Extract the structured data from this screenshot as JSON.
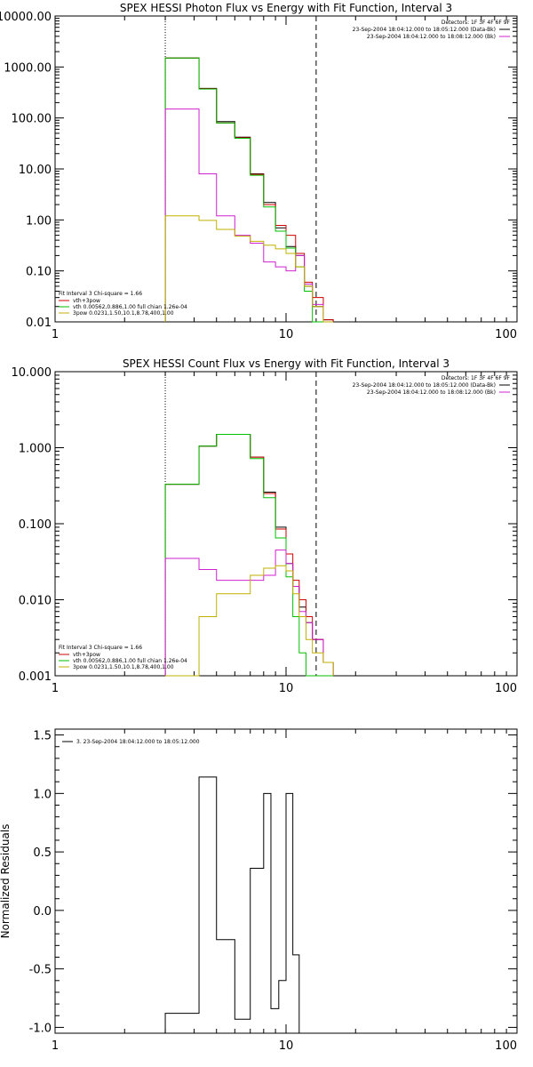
{
  "chart_data": [
    {
      "type": "line",
      "title": "SPEX HESSI Photon Flux vs Energy with Fit Function, Interval 3",
      "xscale": "log",
      "yscale": "log",
      "xlim": [
        1,
        100
      ],
      "ylim": [
        0.01,
        10000
      ],
      "xticks": [
        {
          "v": 1,
          "label": "1"
        },
        {
          "v": 10,
          "label": "10"
        },
        {
          "v": 100,
          "label": "100"
        }
      ],
      "yticks": [
        {
          "v": 0.01,
          "label": "0.01"
        },
        {
          "v": 0.1,
          "label": "0.10"
        },
        {
          "v": 1,
          "label": "1.00"
        },
        {
          "v": 10,
          "label": "10.00"
        },
        {
          "v": 100,
          "label": "100.00"
        },
        {
          "v": 1000,
          "label": "1000.00"
        },
        {
          "v": 10000,
          "label": "10000.00"
        }
      ],
      "vlines": [
        {
          "x": 3.0,
          "style": "dotted"
        },
        {
          "x": 13.5,
          "style": "dashed"
        }
      ],
      "info_top_right": [
        "Detectors: 1F 3F 4F 6F 9F",
        "23-Sep-2004 18:04:12.000 to 18:05:12.000 (Data-Bk)",
        "23-Sep-2004 18:04:12.000 to 18:08:12.000 (Bk)"
      ],
      "info_swatch_colors": [
        "#000000",
        "#d020d0"
      ],
      "fit_legend": {
        "header": "Fit Interval  3    Chi-square = 1.66",
        "entries": [
          {
            "label": "vth+3pow",
            "color": "#d00000"
          },
          {
            "label": "vth 0.00562,0.886,1.00  full chian 1.26e-04",
            "color": "#00c000"
          },
          {
            "label": "3pow 0.0231,1.50,10.1,8.78,400,1.00",
            "color": "#c0b000"
          }
        ]
      },
      "bin_edges": [
        3.0,
        3.5,
        4.2,
        5.0,
        6.0,
        7.0,
        8.0,
        9.0,
        10.0,
        11.0,
        12.0,
        13.0,
        14.5,
        16.0
      ],
      "series": [
        {
          "color": "#000000",
          "values": [
            1500,
            1500,
            380,
            85,
            42,
            8,
            2.2,
            0.7,
            0.3,
            0.2,
            0.05,
            0.02,
            0.011
          ]
        },
        {
          "color": "#d00000",
          "values": [
            1500,
            1500,
            375,
            80,
            41,
            7.8,
            2.0,
            0.78,
            0.5,
            0.22,
            0.06,
            0.03,
            0.011
          ]
        },
        {
          "color": "#00c000",
          "values": [
            1500,
            1500,
            370,
            80,
            40,
            7.5,
            1.8,
            0.6,
            0.28,
            0.12,
            0.04,
            0.008,
            0.008
          ]
        },
        {
          "color": "#d020d0",
          "values": [
            150,
            150,
            8,
            1.2,
            0.5,
            0.35,
            0.15,
            0.12,
            0.1,
            0.2,
            0.055,
            0.022,
            0.01
          ]
        },
        {
          "color": "#c0b000",
          "values": [
            1.2,
            1.2,
            0.98,
            0.65,
            0.48,
            0.38,
            0.32,
            0.27,
            0.22,
            0.12,
            0.05,
            0.02,
            0.01
          ]
        }
      ]
    },
    {
      "type": "line",
      "title": "SPEX HESSI Count Flux vs Energy with Fit Function, Interval 3",
      "xscale": "log",
      "yscale": "log",
      "xlim": [
        1,
        100
      ],
      "ylim": [
        0.001,
        10
      ],
      "xticks": [
        {
          "v": 1,
          "label": "1"
        },
        {
          "v": 10,
          "label": "10"
        },
        {
          "v": 100,
          "label": "100"
        }
      ],
      "yticks": [
        {
          "v": 0.001,
          "label": "0.001"
        },
        {
          "v": 0.01,
          "label": "0.010"
        },
        {
          "v": 0.1,
          "label": "0.100"
        },
        {
          "v": 1,
          "label": "1.000"
        },
        {
          "v": 10,
          "label": "10.000"
        }
      ],
      "vlines": [
        {
          "x": 3.0,
          "style": "dotted"
        },
        {
          "x": 13.5,
          "style": "dashed"
        }
      ],
      "info_top_right": [
        "Detectors: 1F 3F 4F 6F 9F",
        "23-Sep-2004 18:04:12.000 to 18:05:12.000 (Data-Bk)",
        "23-Sep-2004 18:04:12.000 to 18:08:12.000 (Bk)"
      ],
      "info_swatch_colors": [
        "#000000",
        "#d020d0"
      ],
      "fit_legend": {
        "header": "Fit Interval  3    Chi-square = 1.66",
        "entries": [
          {
            "label": "vth+3pow",
            "color": "#d00000"
          },
          {
            "label": "vth 0.00562,0.886,1.00  full chian 1.26e-04",
            "color": "#00c000"
          },
          {
            "label": "3pow 0.0231,1.50,10.1,8.78,400,1.00",
            "color": "#c0b000"
          }
        ]
      },
      "bin_edges": [
        3.0,
        4.2,
        5.0,
        7.0,
        8.0,
        9.0,
        10.0,
        10.7,
        11.4,
        12.2,
        13.0,
        14.5,
        16.0
      ],
      "series": [
        {
          "color": "#000000",
          "values": [
            0.33,
            1.05,
            1.5,
            0.75,
            0.26,
            0.09,
            0.03,
            0.015,
            0.008,
            0.005,
            0.003,
            0.0015
          ]
        },
        {
          "color": "#d00000",
          "values": [
            0.33,
            1.05,
            1.5,
            0.75,
            0.25,
            0.085,
            0.04,
            0.018,
            0.01,
            0.006,
            0.003,
            0.0015
          ]
        },
        {
          "color": "#00c000",
          "values": [
            0.33,
            1.05,
            1.5,
            0.72,
            0.22,
            0.065,
            0.02,
            0.006,
            0.002,
            0.001,
            0.001,
            0.001
          ]
        },
        {
          "color": "#d020d0",
          "values": [
            0.035,
            0.025,
            0.018,
            0.018,
            0.021,
            0.045,
            0.03,
            0.015,
            0.007,
            0.005,
            0.003,
            0.0015
          ]
        },
        {
          "color": "#c0b000",
          "values": [
            0.001,
            0.006,
            0.012,
            0.021,
            0.026,
            0.028,
            0.024,
            0.012,
            0.006,
            0.003,
            0.002,
            0.0015
          ]
        }
      ]
    },
    {
      "type": "line",
      "title": "",
      "ylabel": "Normalized Residuals",
      "xscale": "log",
      "yscale": "linear",
      "xlim": [
        1,
        100
      ],
      "ylim": [
        -1.05,
        1.55
      ],
      "xticks": [
        {
          "v": 1,
          "label": "1"
        },
        {
          "v": 10,
          "label": "10"
        },
        {
          "v": 100,
          "label": "100"
        }
      ],
      "yticks": [
        {
          "v": -1.0,
          "label": "-1.0"
        },
        {
          "v": -0.5,
          "label": "-0.5"
        },
        {
          "v": 0.0,
          "label": "0.0"
        },
        {
          "v": 0.5,
          "label": "0.5"
        },
        {
          "v": 1.0,
          "label": "1.0"
        },
        {
          "v": 1.5,
          "label": "1.5"
        }
      ],
      "legend": [
        {
          "label": "3. 23-Sep-2004 18:04:12.000 to 18:05:12.000",
          "color": "#000000"
        }
      ],
      "bin_edges": [
        3.0,
        4.2,
        5.0,
        6.0,
        7.0,
        8.0,
        8.6,
        9.3,
        10.0,
        10.7,
        11.4,
        12.2,
        13.0
      ],
      "series": [
        {
          "color": "#000000",
          "values": [
            -0.88,
            1.14,
            -0.25,
            -0.93,
            0.36,
            1.0,
            -0.84,
            -0.6,
            1.0,
            -0.38,
            -1.05,
            -1.05
          ]
        }
      ]
    }
  ]
}
